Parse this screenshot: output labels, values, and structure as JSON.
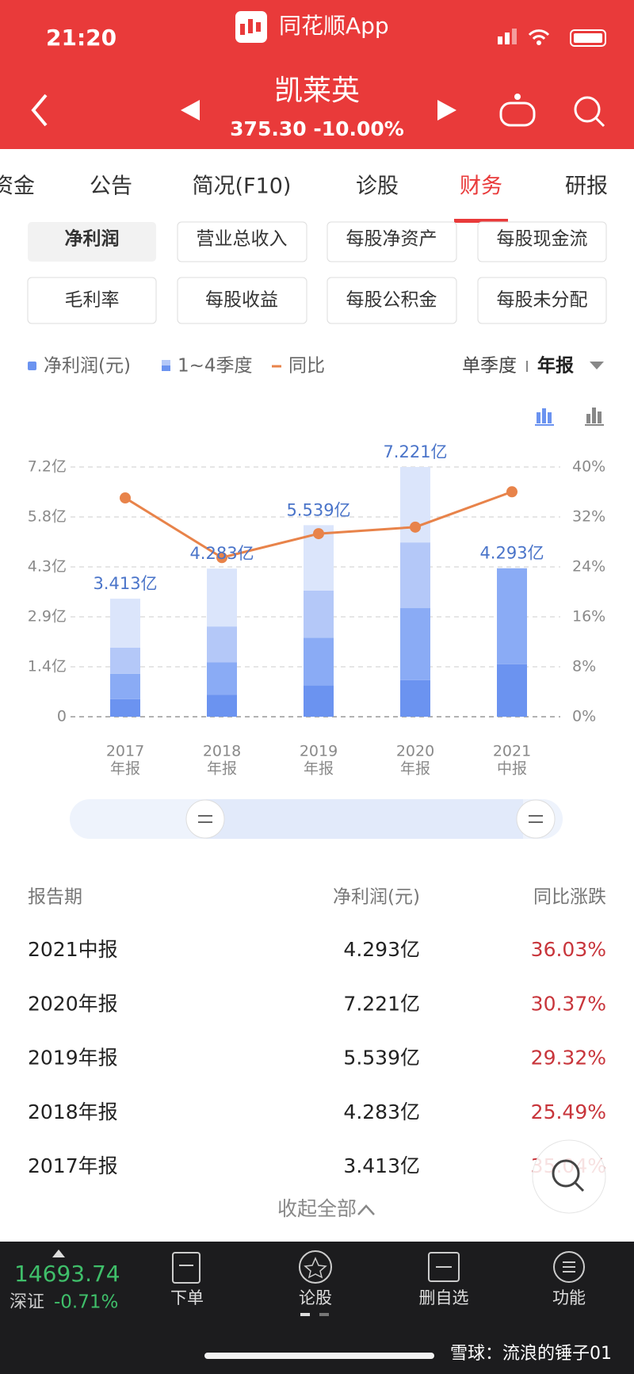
{
  "status": {
    "time": "21:20",
    "app": "同花顺App"
  },
  "header": {
    "title": "凯莱英",
    "quote": "375.30 -10.00%"
  },
  "tabs": [
    "资金",
    "公告",
    "简况(F10)",
    "诊股",
    "财务",
    "研报"
  ],
  "metrics": [
    "净利润",
    "营业总收入",
    "每股净资产",
    "每股现金流",
    "毛利率",
    "每股收益",
    "每股公积金",
    "每股未分配"
  ],
  "chart_data": {
    "type": "bar",
    "legend": [
      "净利润(元)",
      "1~4季度"
    ],
    "period_toggle": [
      "单季度",
      "年报"
    ],
    "categories": [
      [
        "2017",
        "年报"
      ],
      [
        "2018",
        "年报"
      ],
      [
        "2019",
        "年报"
      ],
      [
        "2020",
        "年报"
      ],
      [
        "2021",
        "中报"
      ]
    ],
    "series": [
      {
        "color": "#6b93f0",
        "values": [
          0.51,
          0.63,
          0.91,
          1.06,
          1.52
        ]
      },
      {
        "color": "#8aabf5",
        "values": [
          0.73,
          0.94,
          1.37,
          2.08,
          2.773
        ]
      },
      {
        "color": "#b4c8f8",
        "values": [
          0.76,
          1.04,
          1.37,
          1.9,
          null
        ]
      },
      {
        "color": "#dbe5fb",
        "values": [
          1.413,
          1.673,
          1.889,
          2.181,
          null
        ]
      },
      {
        "name": "同比",
        "type": "line",
        "axis": "y2",
        "color": "#e8834a",
        "values": [
          35.04,
          25.49,
          29.32,
          30.37,
          36.03
        ]
      }
    ],
    "totals": {
      "values": [
        3.413,
        4.283,
        5.539,
        7.221,
        4.293
      ],
      "value_labels": [
        "3.413亿",
        "4.283亿",
        "5.539亿",
        "7.221亿",
        "4.293亿"
      ],
      "color": "#4a74c9"
    },
    "ylim": [
      0,
      7.221
    ],
    "yticks": [
      {
        "value": 0,
        "label": "0"
      },
      {
        "value": 1.4442,
        "label": "1.4亿"
      },
      {
        "value": 2.8884,
        "label": "2.9亿"
      },
      {
        "value": 4.3326,
        "label": "4.3亿"
      },
      {
        "value": 5.7768,
        "label": "5.8亿"
      },
      {
        "value": 7.221,
        "label": "7.2亿"
      }
    ],
    "y2lim": [
      0,
      40
    ],
    "y2ticks": [
      {
        "value": 0,
        "label": "0%"
      },
      {
        "value": 8,
        "label": "8%"
      },
      {
        "value": 16,
        "label": "16%"
      },
      {
        "value": 24,
        "label": "24%"
      },
      {
        "value": 32,
        "label": "32%"
      },
      {
        "value": 40,
        "label": "40%"
      }
    ],
    "grid": true
  },
  "table": {
    "header": [
      "报告期",
      "净利润(元)",
      "同比涨跌"
    ],
    "rows": [
      [
        "2021中报",
        "4.293亿",
        "36.03%"
      ],
      [
        "2020年报",
        "7.221亿",
        "30.37%"
      ],
      [
        "2019年报",
        "5.539亿",
        "29.32%"
      ],
      [
        "2018年报",
        "4.283亿",
        "25.49%"
      ],
      [
        "2017年报",
        "3.413亿",
        "35.04%"
      ]
    ],
    "collapse": "收起全部"
  },
  "footer": {
    "index_value": "14693.74",
    "index_name": "深证",
    "index_change": "-0.71%",
    "nav": [
      "下单",
      "论股",
      "删自选",
      "功能"
    ],
    "watermark": "雪球：流浪的锤子01"
  }
}
